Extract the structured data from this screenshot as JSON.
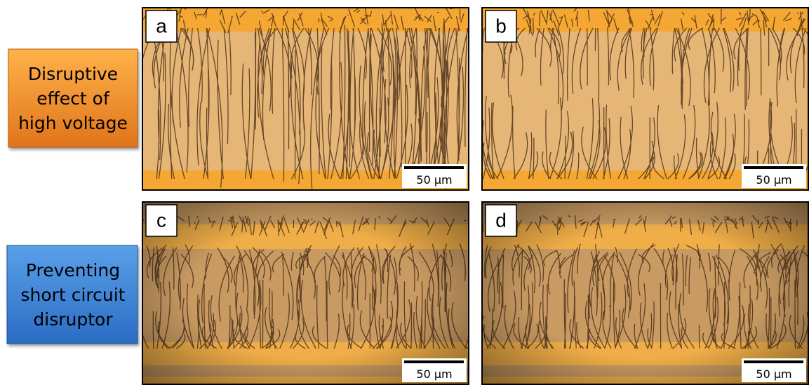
{
  "row_labels": [
    [
      "Disruptive",
      "effect of",
      "high voltage"
    ],
    [
      "Preventing",
      "short circuit",
      "disruptor"
    ]
  ],
  "panels": [
    {
      "letter": "a",
      "scale_bar": "50 µm"
    },
    {
      "letter": "b",
      "scale_bar": "50 µm"
    },
    {
      "letter": "c",
      "scale_bar": "50 µm"
    },
    {
      "letter": "d",
      "scale_bar": "50 µm"
    }
  ]
}
